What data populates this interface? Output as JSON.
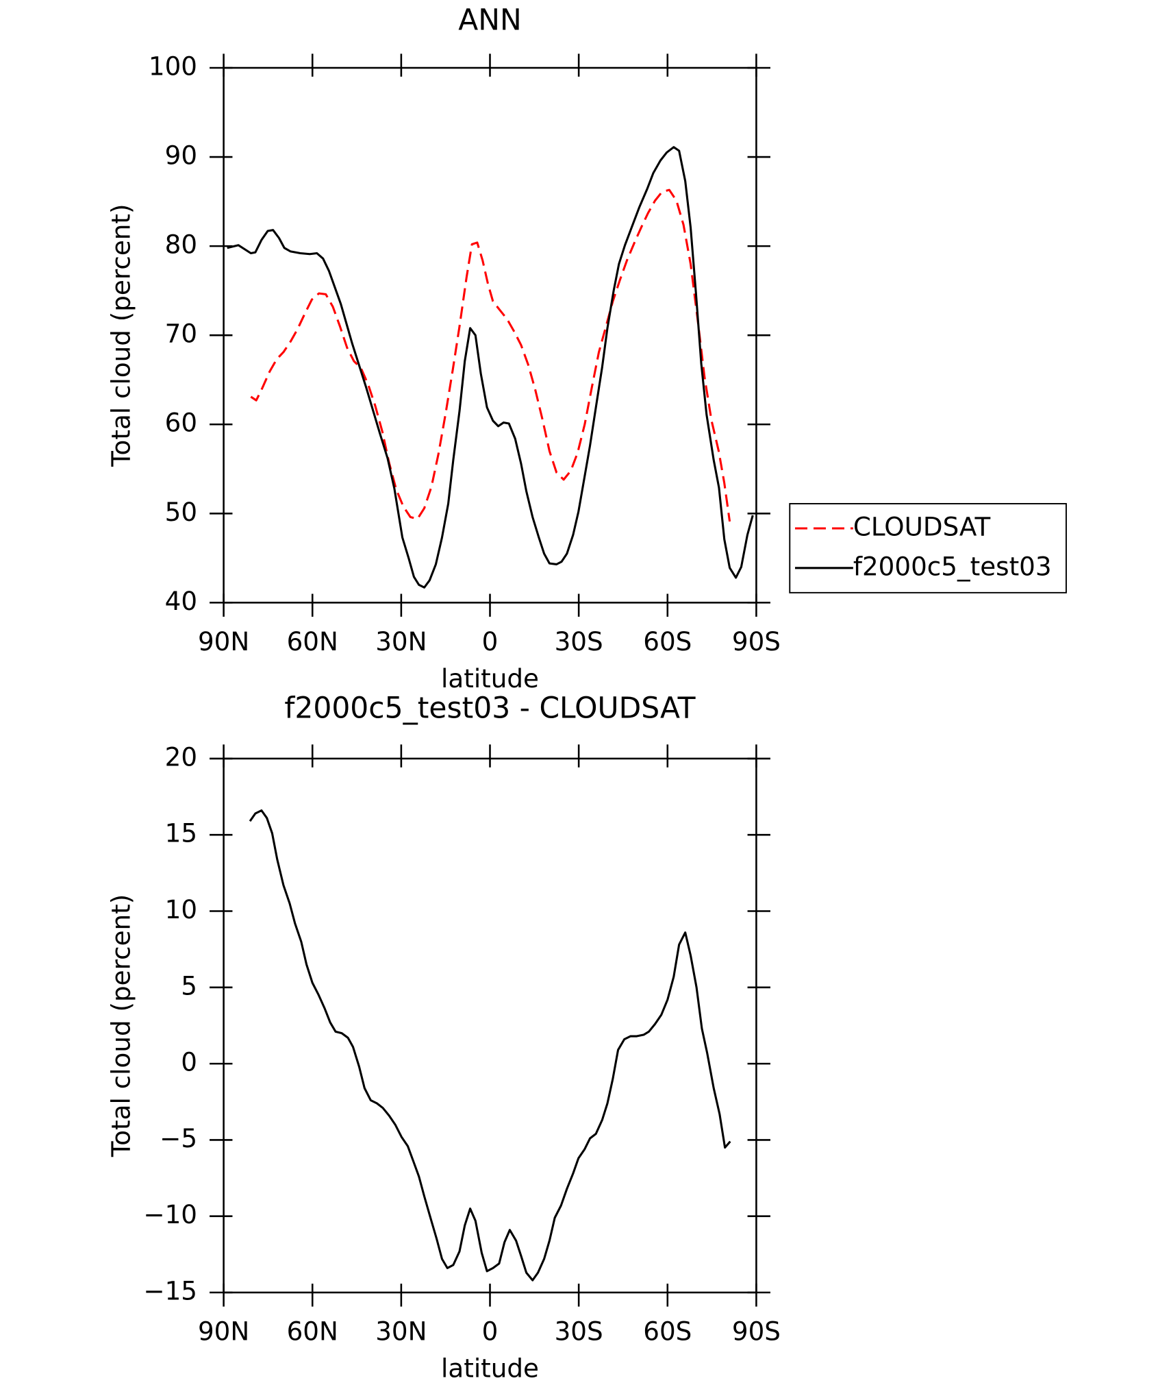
{
  "chart_data": [
    {
      "type": "line",
      "title": "ANN",
      "xlabel": "latitude",
      "ylabel": "Total cloud (percent)",
      "xlim": [
        90,
        -90
      ],
      "xticks": [
        {
          "value": 90,
          "label": "90N"
        },
        {
          "value": 60,
          "label": "60N"
        },
        {
          "value": 30,
          "label": "30N"
        },
        0,
        {
          "value": -30,
          "label": "30S"
        },
        {
          "value": -60,
          "label": "60S"
        },
        {
          "value": -90,
          "label": "90S"
        }
      ],
      "ylim": [
        40,
        100
      ],
      "yticks": [
        40,
        50,
        60,
        70,
        80,
        90,
        100
      ],
      "legend": "right",
      "series": [
        {
          "name": "CLOUDSAT",
          "color": "#ff0000",
          "style": "dashed",
          "x": [
            80.8,
            79.0,
            76.9,
            74.5,
            72.1,
            69.8,
            67.4,
            65.0,
            62.6,
            60.2,
            57.8,
            55.5,
            53.1,
            50.7,
            48.3,
            46.0,
            43.6,
            41.2,
            38.8,
            36.4,
            34.1,
            31.7,
            29.3,
            26.9,
            24.5,
            22.2,
            19.8,
            17.4,
            15.0,
            12.6,
            10.3,
            7.9,
            6.1,
            4.3,
            2.5,
            0.7,
            -1.0,
            -3.4,
            -5.8,
            -8.2,
            -10.5,
            -12.9,
            -15.3,
            -17.7,
            -20.1,
            -22.5,
            -24.9,
            -27.3,
            -29.6,
            -32.0,
            -34.4,
            -36.8,
            -39.2,
            -41.5,
            -43.9,
            -46.3,
            -48.7,
            -51.1,
            -53.4,
            -55.8,
            -58.2,
            -60.6,
            -63.0,
            -65.4,
            -67.8,
            -70.1,
            -72.5,
            -74.9,
            -77.3,
            -79.2,
            -81.0
          ],
          "values": [
            63.1,
            62.7,
            64.1,
            65.9,
            67.3,
            68.1,
            69.3,
            70.7,
            72.4,
            74.0,
            74.7,
            74.6,
            73.2,
            71.0,
            68.6,
            67.1,
            66.3,
            64.5,
            62.1,
            59.2,
            55.7,
            52.7,
            50.8,
            49.6,
            49.4,
            50.6,
            53.0,
            56.7,
            61.2,
            66.1,
            71.0,
            76.5,
            80.2,
            80.4,
            78.4,
            75.8,
            73.8,
            72.8,
            71.8,
            70.4,
            68.9,
            66.7,
            63.9,
            60.6,
            57.0,
            54.6,
            53.8,
            54.8,
            56.8,
            60.0,
            64.1,
            68.1,
            71.0,
            73.8,
            76.2,
            78.4,
            80.3,
            82.1,
            83.7,
            85.1,
            86.1,
            86.3,
            85.1,
            82.4,
            78.0,
            72.0,
            65.3,
            60.4,
            57.0,
            53.4,
            49.1
          ]
        },
        {
          "name": "f2000c5_test03",
          "color": "#000000",
          "style": "solid",
          "x": [
            88.8,
            85.0,
            80.8,
            79.3,
            77.2,
            75.1,
            73.3,
            71.3,
            69.5,
            67.4,
            64.1,
            60.9,
            58.5,
            56.4,
            54.4,
            50.4,
            46.6,
            41.8,
            37.3,
            34.6,
            32.3,
            29.6,
            27.5,
            25.7,
            24.0,
            22.2,
            20.4,
            18.3,
            16.2,
            14.1,
            12.4,
            10.3,
            8.5,
            6.7,
            4.9,
            3.1,
            1.0,
            -1.0,
            -2.8,
            -4.6,
            -6.4,
            -8.5,
            -10.5,
            -12.3,
            -14.4,
            -16.5,
            -18.3,
            -20.1,
            -22.5,
            -24.2,
            -26.0,
            -28.1,
            -29.9,
            -32.0,
            -33.8,
            -35.8,
            -37.9,
            -39.7,
            -41.8,
            -43.6,
            -45.6,
            -48.0,
            -50.4,
            -53.1,
            -55.2,
            -57.6,
            -59.7,
            -62.1,
            -63.9,
            -66.0,
            -67.8,
            -69.6,
            -71.4,
            -73.2,
            -75.6,
            -77.4,
            -79.2,
            -81.0,
            -83.1,
            -84.9,
            -87.0,
            -88.8
          ],
          "values": [
            79.8,
            80.1,
            79.2,
            79.3,
            80.7,
            81.7,
            81.8,
            80.9,
            79.8,
            79.4,
            79.2,
            79.1,
            79.2,
            78.6,
            77.2,
            73.5,
            69.1,
            64.1,
            59.1,
            56.2,
            52.8,
            47.3,
            45.0,
            42.9,
            42.0,
            41.7,
            42.5,
            44.3,
            47.3,
            51.1,
            56.0,
            61.5,
            67.1,
            70.8,
            70.0,
            65.7,
            61.9,
            60.4,
            59.8,
            60.2,
            60.1,
            58.4,
            55.6,
            52.5,
            49.6,
            47.3,
            45.5,
            44.4,
            44.3,
            44.6,
            45.5,
            47.6,
            50.2,
            54.2,
            57.6,
            61.9,
            66.4,
            70.8,
            75.0,
            78.0,
            80.1,
            82.2,
            84.3,
            86.4,
            88.2,
            89.6,
            90.5,
            91.1,
            90.7,
            87.3,
            82.1,
            74.8,
            66.8,
            61.1,
            56.0,
            52.9,
            47.1,
            43.9,
            42.8,
            44.0,
            47.6,
            49.8
          ]
        }
      ]
    },
    {
      "type": "line",
      "title": "f2000c5_test03 - CLOUDSAT",
      "xlabel": "latitude",
      "ylabel": "Total cloud (percent)",
      "xlim": [
        90,
        -90
      ],
      "xticks": [
        {
          "value": 90,
          "label": "90N"
        },
        {
          "value": 60,
          "label": "60N"
        },
        {
          "value": 30,
          "label": "30N"
        },
        0,
        {
          "value": -30,
          "label": "30S"
        },
        {
          "value": -60,
          "label": "60S"
        },
        {
          "value": -90,
          "label": "90S"
        }
      ],
      "ylim": [
        -15,
        20
      ],
      "yticks": [
        {
          "value": -15,
          "label": "−15"
        },
        {
          "value": -10,
          "label": "−10"
        },
        {
          "value": -5,
          "label": "−5"
        },
        0,
        5,
        10,
        15,
        20
      ],
      "color": "#000000",
      "x": [
        81.1,
        79.3,
        77.2,
        75.4,
        73.6,
        71.9,
        69.8,
        67.7,
        65.9,
        63.8,
        62.0,
        60.0,
        57.9,
        55.8,
        54.0,
        52.2,
        50.1,
        48.0,
        46.3,
        44.2,
        42.4,
        40.3,
        38.2,
        36.2,
        34.1,
        32.0,
        29.9,
        27.8,
        25.7,
        24.0,
        22.2,
        20.1,
        18.0,
        16.2,
        14.4,
        12.4,
        10.3,
        8.5,
        6.7,
        4.9,
        2.8,
        1.0,
        -1.0,
        -3.1,
        -4.9,
        -6.7,
        -8.8,
        -10.5,
        -12.3,
        -14.4,
        -16.2,
        -18.3,
        -20.1,
        -21.9,
        -24.0,
        -26.0,
        -28.1,
        -29.9,
        -32.0,
        -33.8,
        -35.8,
        -37.9,
        -39.7,
        -41.5,
        -43.3,
        -45.4,
        -47.5,
        -49.6,
        -52.0,
        -53.7,
        -55.8,
        -57.9,
        -60.0,
        -62.1,
        -63.9,
        -66.0,
        -67.8,
        -69.8,
        -71.6,
        -73.4,
        -75.6,
        -77.6,
        -79.4,
        -81.2
      ],
      "values": [
        15.9,
        16.4,
        16.6,
        16.1,
        15.1,
        13.4,
        11.7,
        10.5,
        9.2,
        8.0,
        6.5,
        5.3,
        4.5,
        3.6,
        2.7,
        2.1,
        2.0,
        1.7,
        1.1,
        -0.2,
        -1.6,
        -2.4,
        -2.6,
        -2.9,
        -3.4,
        -4.0,
        -4.8,
        -5.4,
        -6.5,
        -7.4,
        -8.7,
        -10.1,
        -11.5,
        -12.8,
        -13.4,
        -13.2,
        -12.3,
        -10.6,
        -9.5,
        -10.3,
        -12.4,
        -13.6,
        -13.4,
        -13.1,
        -11.7,
        -10.9,
        -11.6,
        -12.6,
        -13.7,
        -14.2,
        -13.7,
        -12.8,
        -11.6,
        -10.1,
        -9.3,
        -8.2,
        -7.2,
        -6.2,
        -5.6,
        -4.9,
        -4.6,
        -3.7,
        -2.6,
        -1.0,
        0.9,
        1.6,
        1.8,
        1.8,
        1.9,
        2.1,
        2.6,
        3.2,
        4.2,
        5.7,
        7.8,
        8.6,
        7.1,
        5.0,
        2.3,
        0.7,
        -1.6,
        -3.3,
        -5.5,
        -5.1
      ]
    }
  ]
}
